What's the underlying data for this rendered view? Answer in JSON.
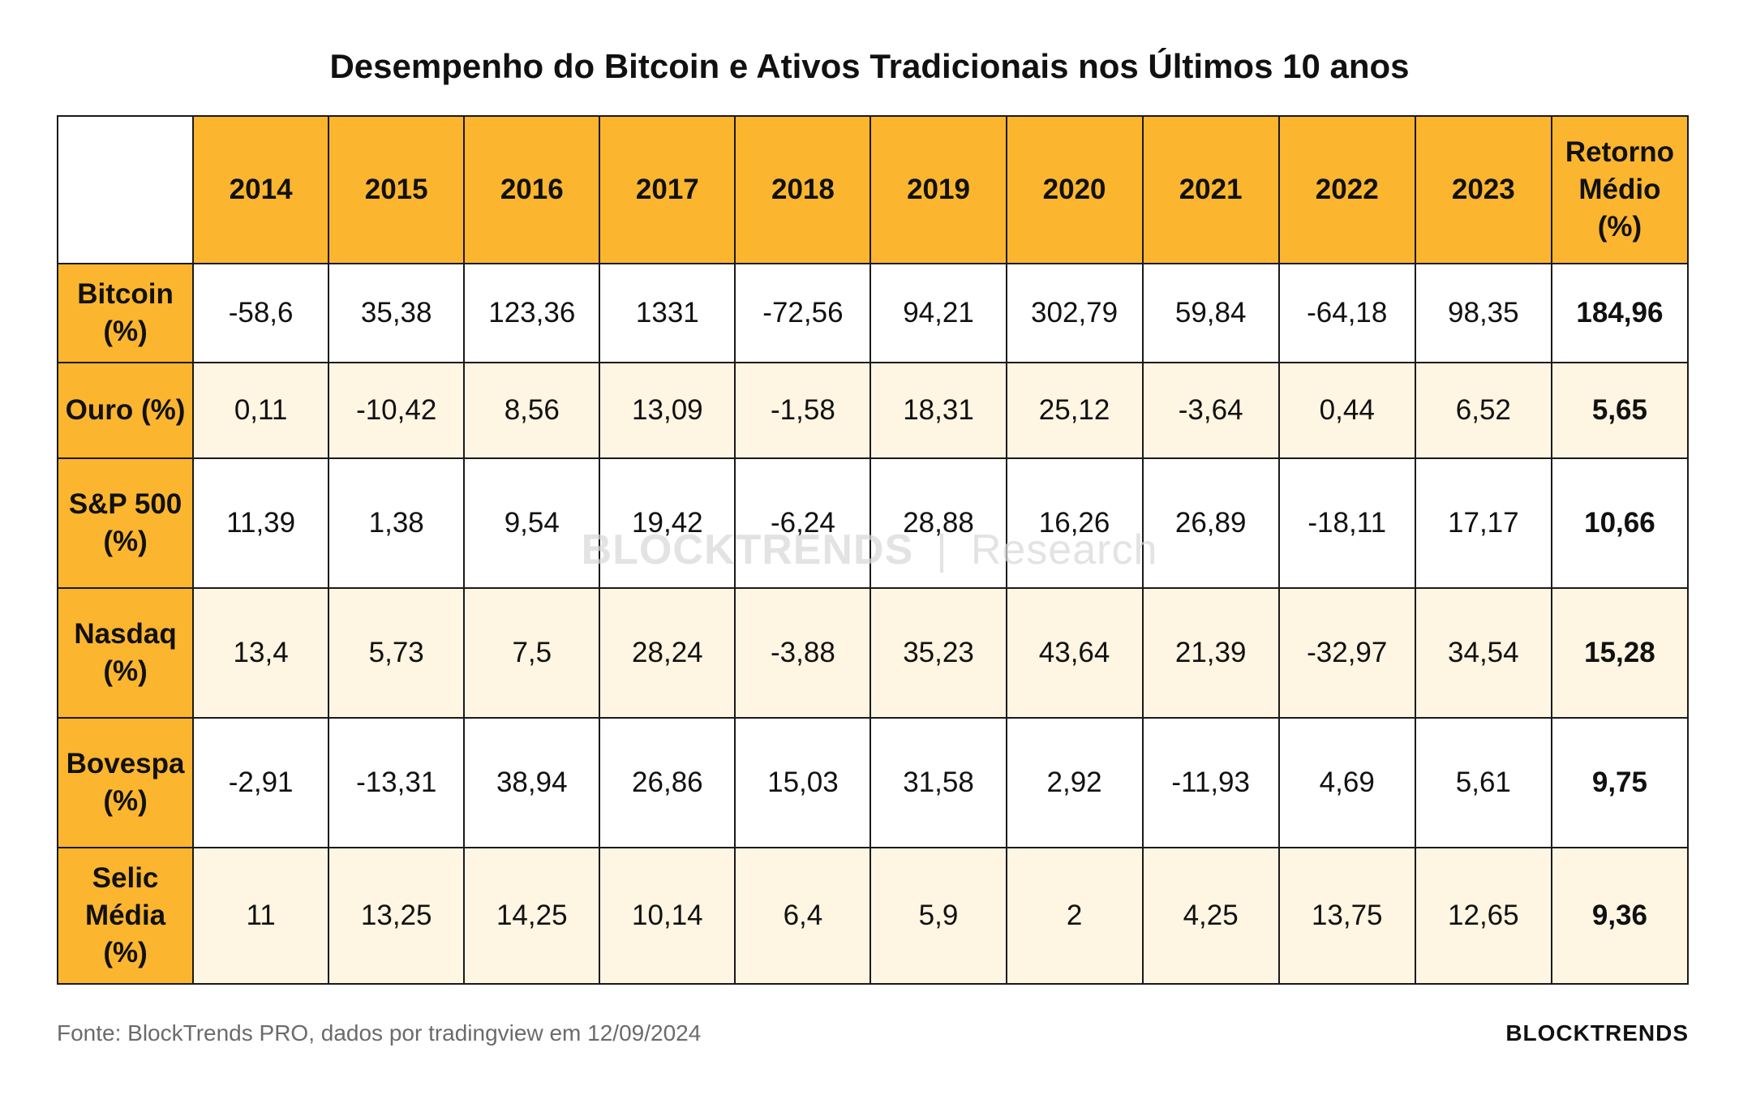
{
  "chart_data": {
    "type": "table",
    "title": "Desempenho do Bitcoin e Ativos Tradicionais nos Últimos 10 anos",
    "columns": [
      "2014",
      "2015",
      "2016",
      "2017",
      "2018",
      "2019",
      "2020",
      "2021",
      "2022",
      "2023",
      "Retorno Médio (%)"
    ],
    "rows": [
      {
        "label": "Bitcoin (%)",
        "values": [
          "-58,6",
          "35,38",
          "123,36",
          "1331",
          "-72,56",
          "94,21",
          "302,79",
          "59,84",
          "-64,18",
          "98,35"
        ],
        "average": "184,96"
      },
      {
        "label": "Ouro (%)",
        "values": [
          "0,11",
          "-10,42",
          "8,56",
          "13,09",
          "-1,58",
          "18,31",
          "25,12",
          "-3,64",
          "0,44",
          "6,52"
        ],
        "average": "5,65"
      },
      {
        "label": "S&P 500 (%)",
        "values": [
          "11,39",
          "1,38",
          "9,54",
          "19,42",
          "-6,24",
          "28,88",
          "16,26",
          "26,89",
          "-18,11",
          "17,17"
        ],
        "average": "10,66"
      },
      {
        "label": "Nasdaq (%)",
        "values": [
          "13,4",
          "5,73",
          "7,5",
          "28,24",
          "-3,88",
          "35,23",
          "43,64",
          "21,39",
          "-32,97",
          "34,54"
        ],
        "average": "15,28"
      },
      {
        "label": "Bovespa (%)",
        "values": [
          "-2,91",
          "-13,31",
          "38,94",
          "26,86",
          "15,03",
          "31,58",
          "2,92",
          "-11,93",
          "4,69",
          "5,61"
        ],
        "average": "9,75"
      },
      {
        "label": "Selic Média (%)",
        "values": [
          "11",
          "13,25",
          "14,25",
          "10,14",
          "6,4",
          "5,9",
          "2",
          "4,25",
          "13,75",
          "12,65"
        ],
        "average": "9,36"
      }
    ]
  },
  "colors": {
    "header": "#FBB52F",
    "stripe": "#FEF5E2",
    "border": "#1a1a1a"
  },
  "watermark": {
    "brand": "BLOCKTRENDS",
    "separator": "|",
    "sub": "Research"
  },
  "footer": {
    "source": "Fonte: BlockTrends PRO, dados por tradingview em 12/09/2024",
    "logo": "BLOCKTRENDS"
  }
}
